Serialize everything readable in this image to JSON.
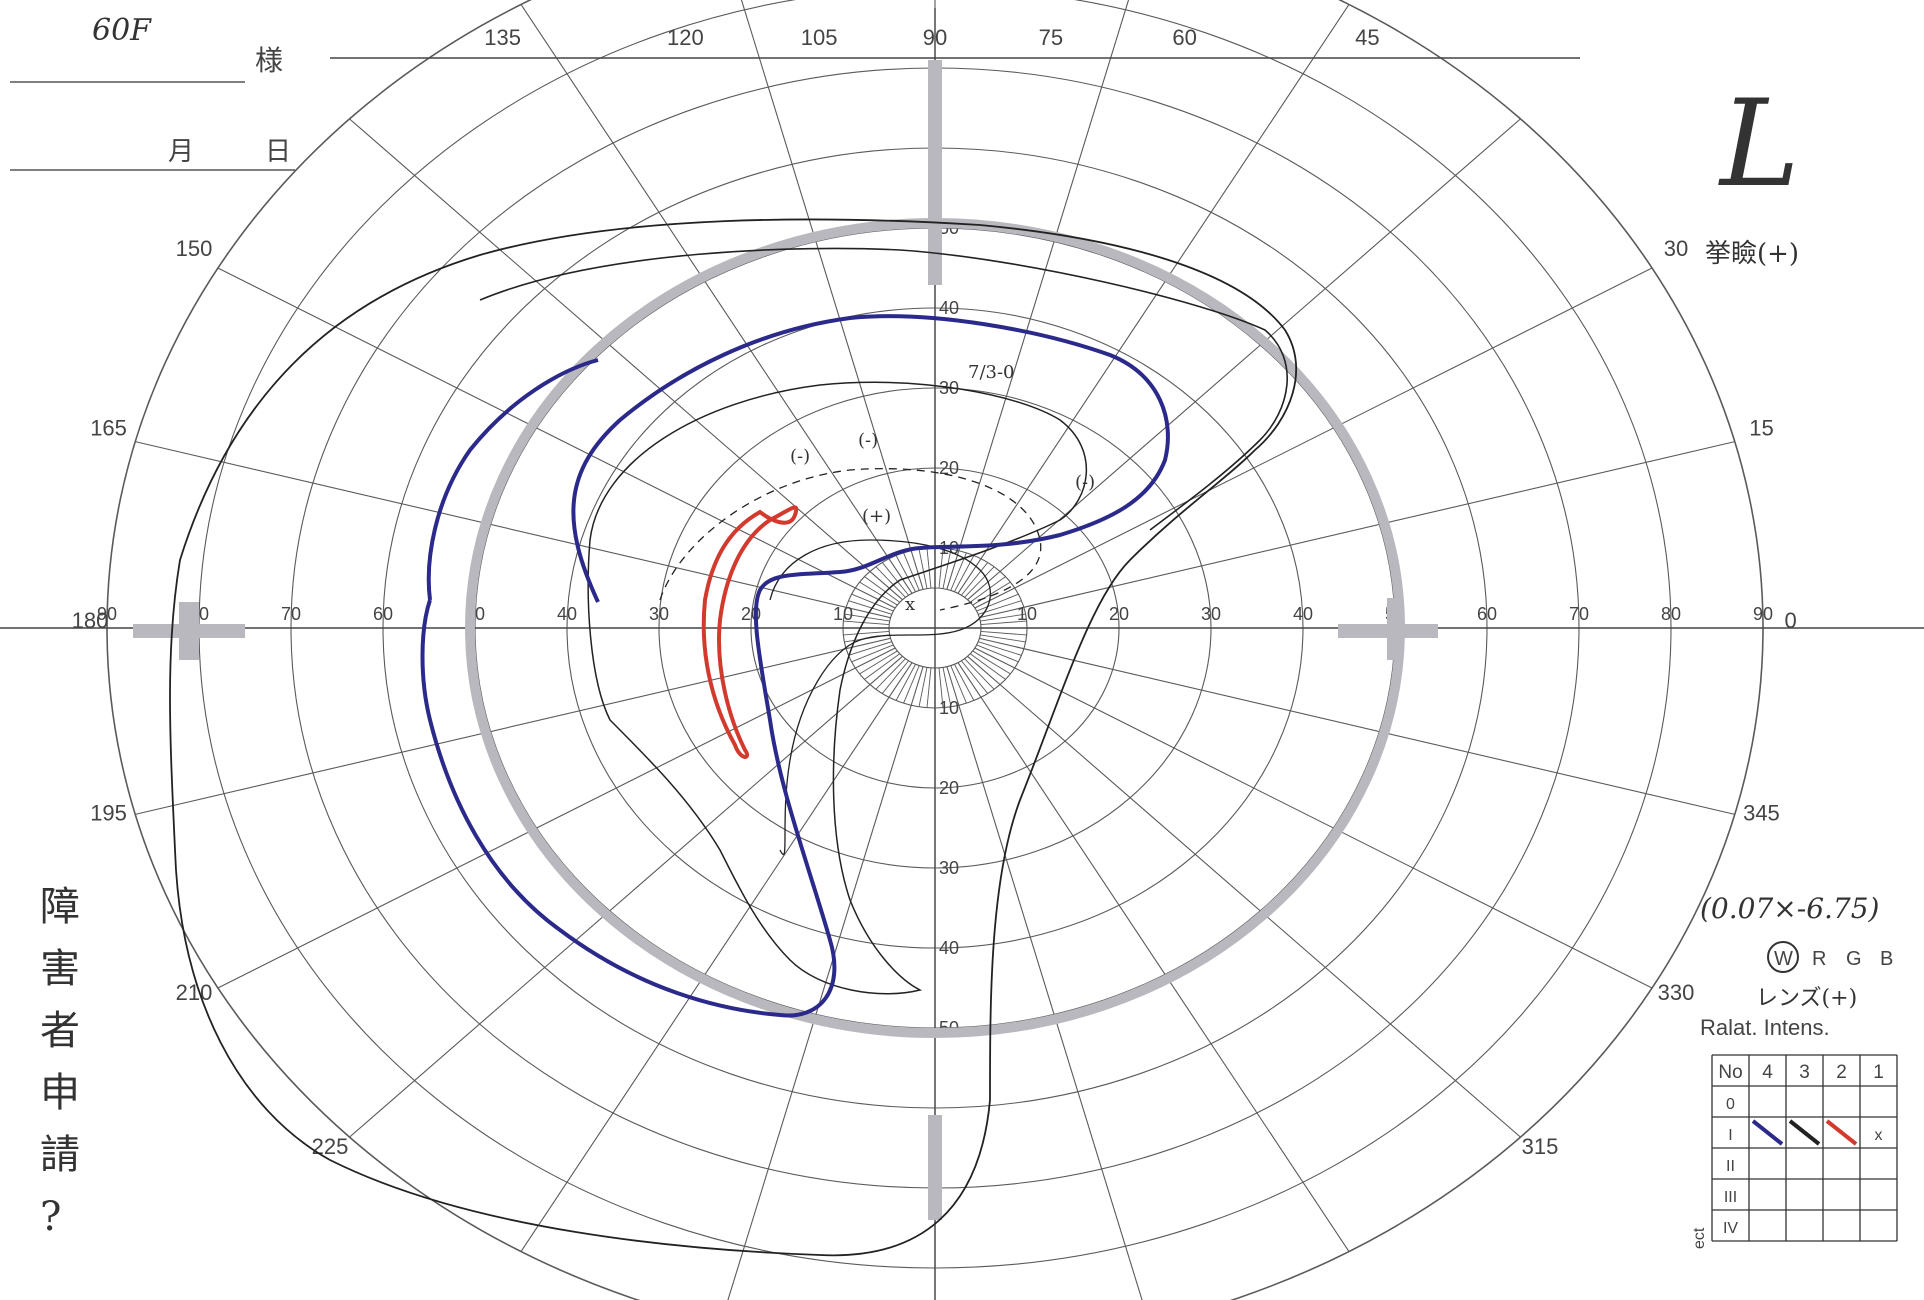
{
  "header": {
    "patient_age_sex": "60F",
    "sama": "様",
    "month": "月",
    "day": "日"
  },
  "eye": "L",
  "note_ptosis": "挙瞼(+)",
  "acuity": "(0.07×-6.75)",
  "stimulus": {
    "selected": "W",
    "others": [
      "R",
      "G",
      "B"
    ]
  },
  "lens_note": "レンズ(+)",
  "intensity_table": {
    "title": "Ralat. Intens.",
    "header": [
      "No",
      "4",
      "3",
      "2",
      "1"
    ],
    "rows": [
      "0",
      "I",
      "II",
      "III",
      "IV"
    ],
    "corner_label": "ect"
  },
  "margin_note": "障害者申請?",
  "perimeter": {
    "meridian_labels": [
      {
        "deg": 90,
        "text": "90"
      },
      {
        "deg": 75,
        "text": "75"
      },
      {
        "deg": 60,
        "text": "60"
      },
      {
        "deg": 45,
        "text": "45"
      },
      {
        "deg": 30,
        "text": "30"
      },
      {
        "deg": 15,
        "text": "15"
      },
      {
        "deg": 0,
        "text": "0"
      },
      {
        "deg": 345,
        "text": "345"
      },
      {
        "deg": 330,
        "text": "330"
      },
      {
        "deg": 315,
        "text": "315"
      },
      {
        "deg": 225,
        "text": "225"
      },
      {
        "deg": 210,
        "text": "210"
      },
      {
        "deg": 195,
        "text": "195"
      },
      {
        "deg": 180,
        "text": "180"
      },
      {
        "deg": 165,
        "text": "165"
      },
      {
        "deg": 150,
        "text": "150"
      },
      {
        "deg": 135,
        "text": "135"
      },
      {
        "deg": 120,
        "text": "120"
      },
      {
        "deg": 105,
        "text": "105"
      }
    ],
    "ring_labels_horizontal": [
      "90",
      "80",
      "70",
      "60",
      "50",
      "40",
      "30",
      "20",
      "10"
    ],
    "ring_labels_vertical": [
      "10",
      "20",
      "30",
      "40",
      "50"
    ],
    "isopter_annotations": [
      "7/3-0",
      "(-)",
      "(-)",
      "(+)",
      "(-)",
      "x"
    ],
    "colors": {
      "blue": "#2b2a8a",
      "red": "#d23a2e",
      "gray": "#b8b8be",
      "grid": "#5a5a5a"
    }
  }
}
